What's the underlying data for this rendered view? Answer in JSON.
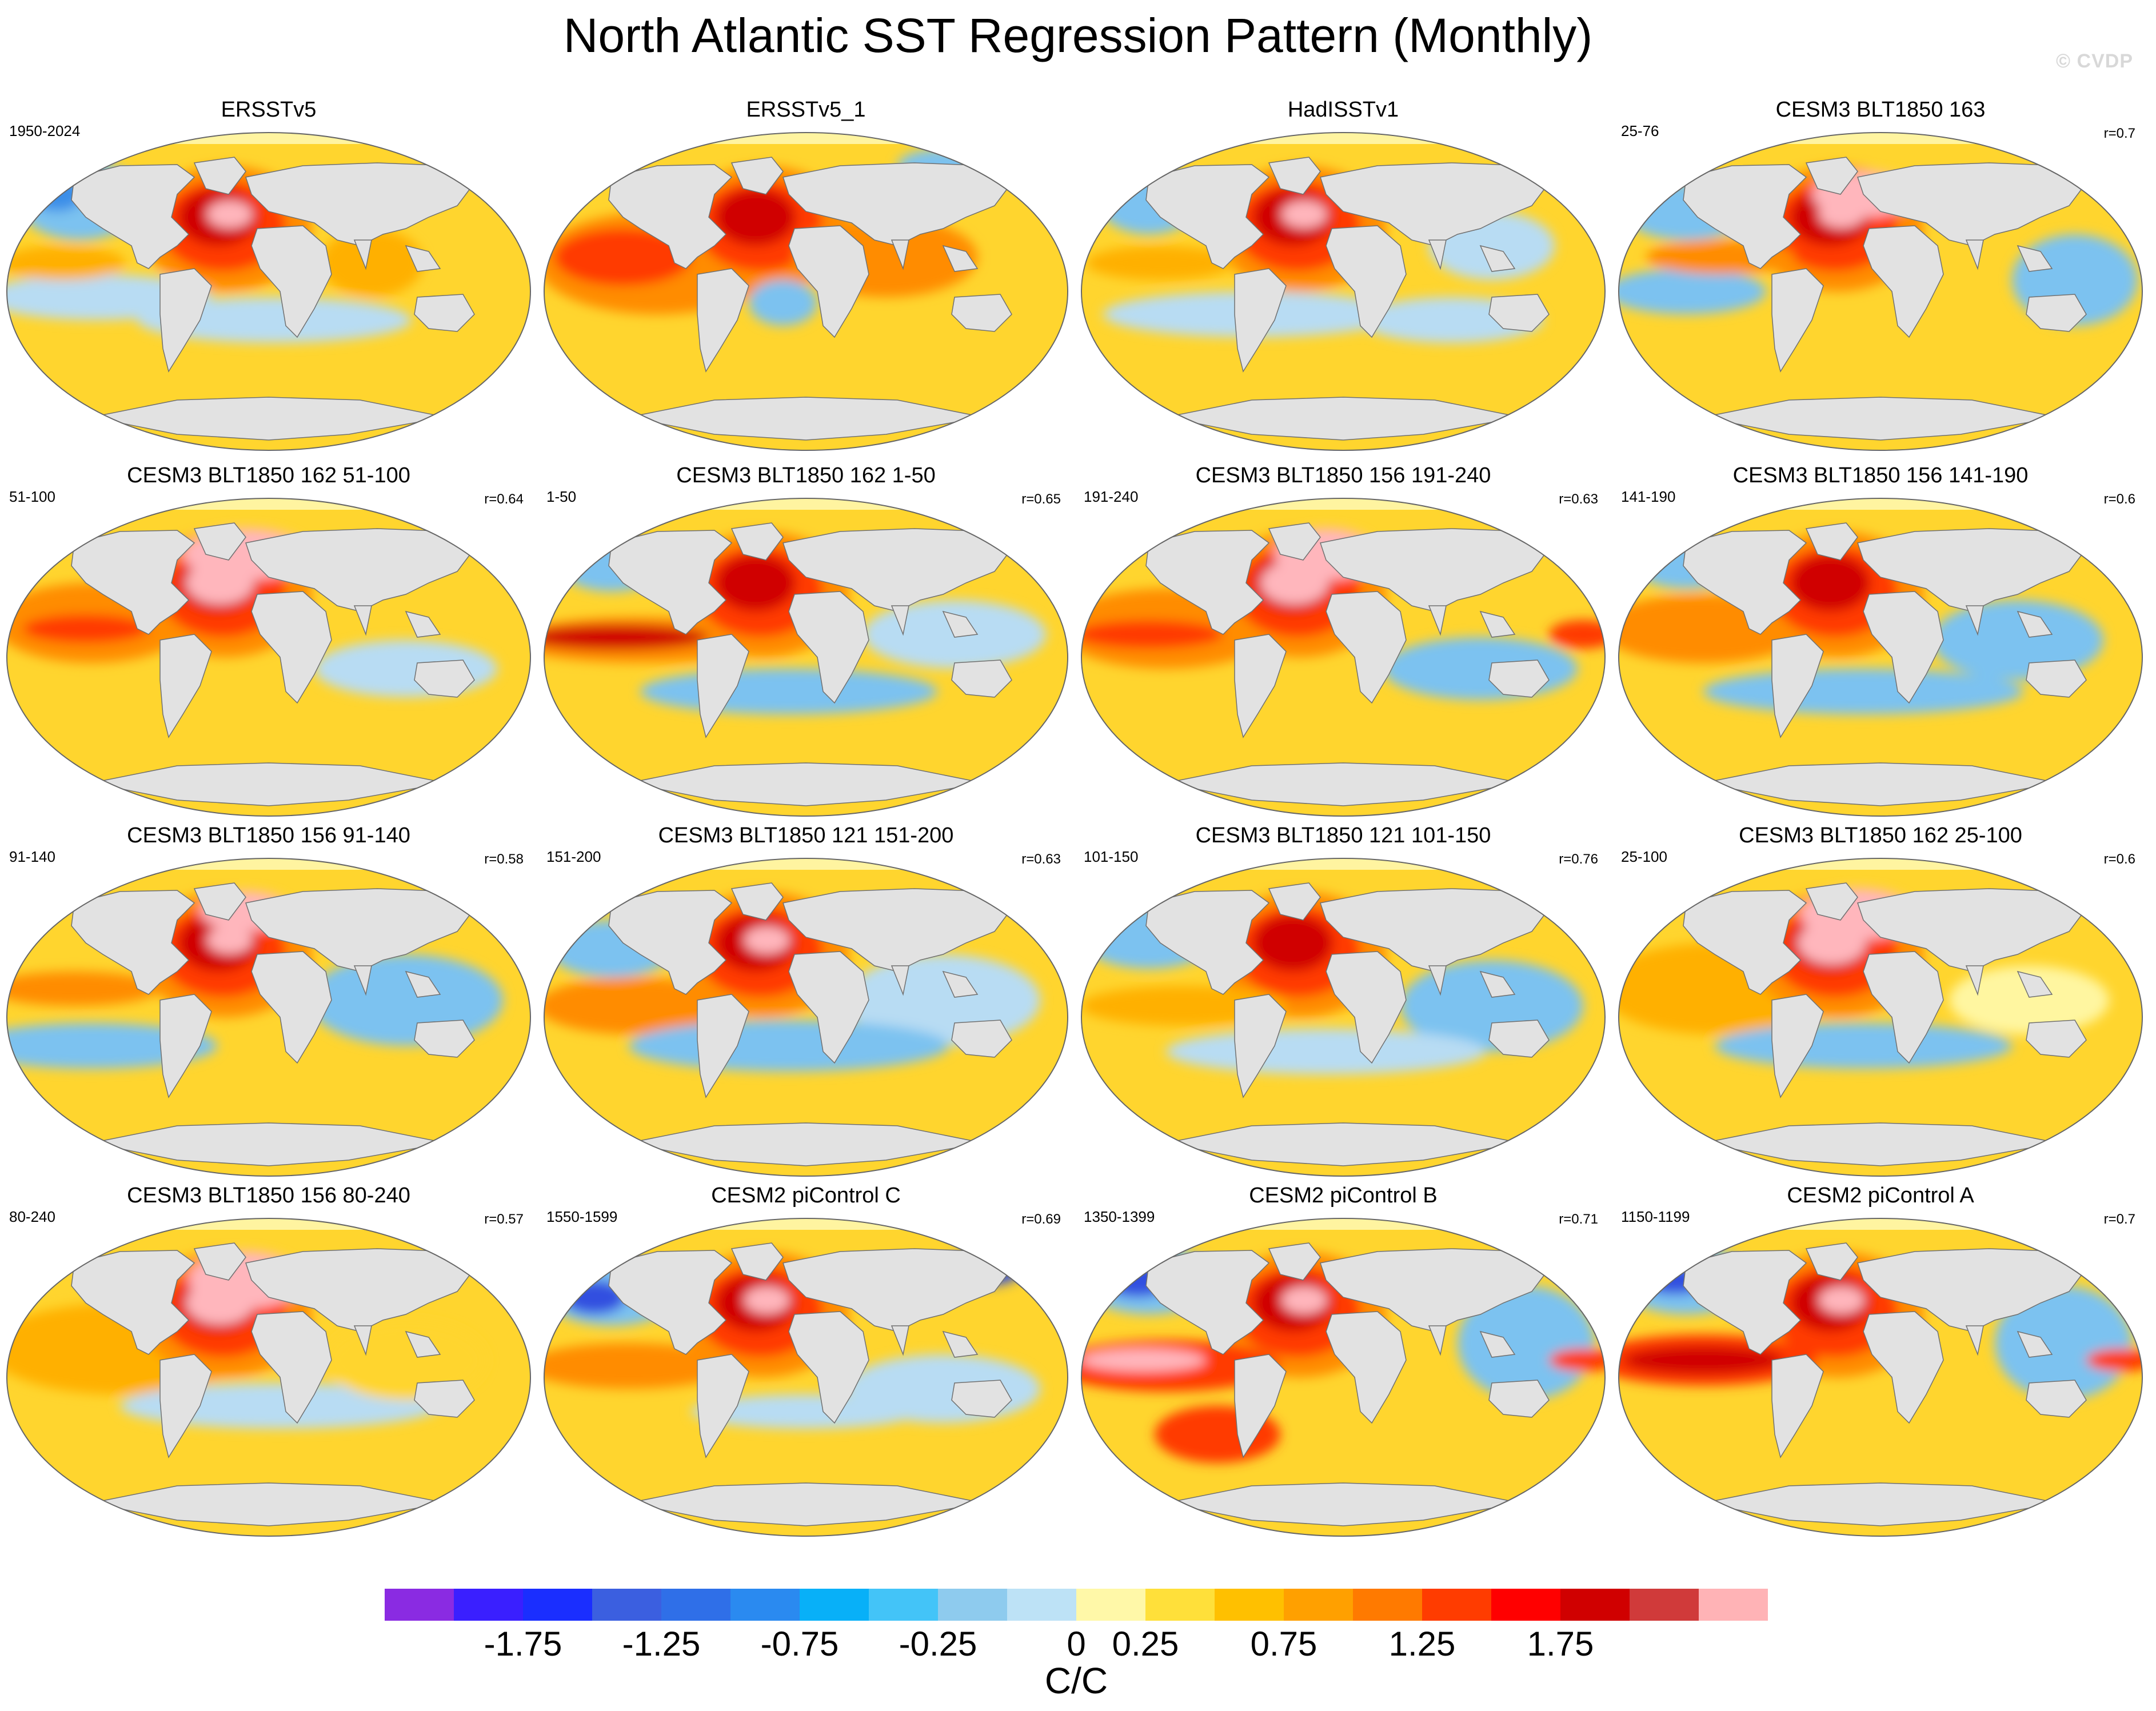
{
  "title": "North Atlantic SST Regression Pattern (Monthly)",
  "credit": "© CVDP",
  "panels": [
    {
      "title": "ERSSTv5",
      "left": "1950-2024",
      "right": "",
      "pattern": "obs1"
    },
    {
      "title": "ERSSTv5_1",
      "left": "",
      "right": "",
      "pattern": "obs2"
    },
    {
      "title": "HadISSTv1",
      "left": "",
      "right": "",
      "pattern": "obs3"
    },
    {
      "title": "CESM3 BLT1850 163",
      "left": "25-76",
      "right": "r=0.7",
      "pattern": "m1"
    },
    {
      "title": "CESM3 BLT1850 162 51-100",
      "left": "51-100",
      "right": "r=0.64",
      "pattern": "m2"
    },
    {
      "title": "CESM3 BLT1850 162 1-50",
      "left": "1-50",
      "right": "r=0.65",
      "pattern": "m3"
    },
    {
      "title": "CESM3 BLT1850 156 191-240",
      "left": "191-240",
      "right": "r=0.63",
      "pattern": "m4"
    },
    {
      "title": "CESM3 BLT1850 156 141-190",
      "left": "141-190",
      "right": "r=0.6",
      "pattern": "m5"
    },
    {
      "title": "CESM3 BLT1850 156 91-140",
      "left": "91-140",
      "right": "r=0.58",
      "pattern": "m6"
    },
    {
      "title": "CESM3 BLT1850 121 151-200",
      "left": "151-200",
      "right": "r=0.63",
      "pattern": "m7"
    },
    {
      "title": "CESM3 BLT1850 121 101-150",
      "left": "101-150",
      "right": "r=0.76",
      "pattern": "m8"
    },
    {
      "title": "CESM3 BLT1850 162 25-100",
      "left": "25-100",
      "right": "r=0.6",
      "pattern": "m9"
    },
    {
      "title": "CESM3 BLT1850 156 80-240",
      "left": "80-240",
      "right": "r=0.57",
      "pattern": "m10"
    },
    {
      "title": "CESM2 piControl C",
      "left": "1550-1599",
      "right": "r=0.69",
      "pattern": "c2c"
    },
    {
      "title": "CESM2 piControl B",
      "left": "1350-1399",
      "right": "r=0.71",
      "pattern": "c2b"
    },
    {
      "title": "CESM2 piControl A",
      "left": "1150-1199",
      "right": "r=0.7",
      "pattern": "c2a"
    }
  ],
  "colorbar": {
    "colors": [
      "#8a2be2",
      "#3a1fff",
      "#1a2eff",
      "#3b5fe0",
      "#2f6fe8",
      "#2a8af0",
      "#08b0f8",
      "#43c4f8",
      "#8ecbee",
      "#bde2f6",
      "#fff8a8",
      "#ffe03a",
      "#ffc000",
      "#ffa000",
      "#ff7a00",
      "#ff3c00",
      "#ff0000",
      "#d00000",
      "#d03a3a",
      "#ffb3b6"
    ],
    "labels": [
      "-1.75",
      "-1.25",
      "-0.75",
      "-0.25",
      "0",
      "0.25",
      "0.75",
      "1.25",
      "1.75"
    ],
    "label_box_index": [
      2,
      4,
      6,
      8,
      10,
      11,
      13,
      15,
      17
    ],
    "units": "C/C"
  }
}
